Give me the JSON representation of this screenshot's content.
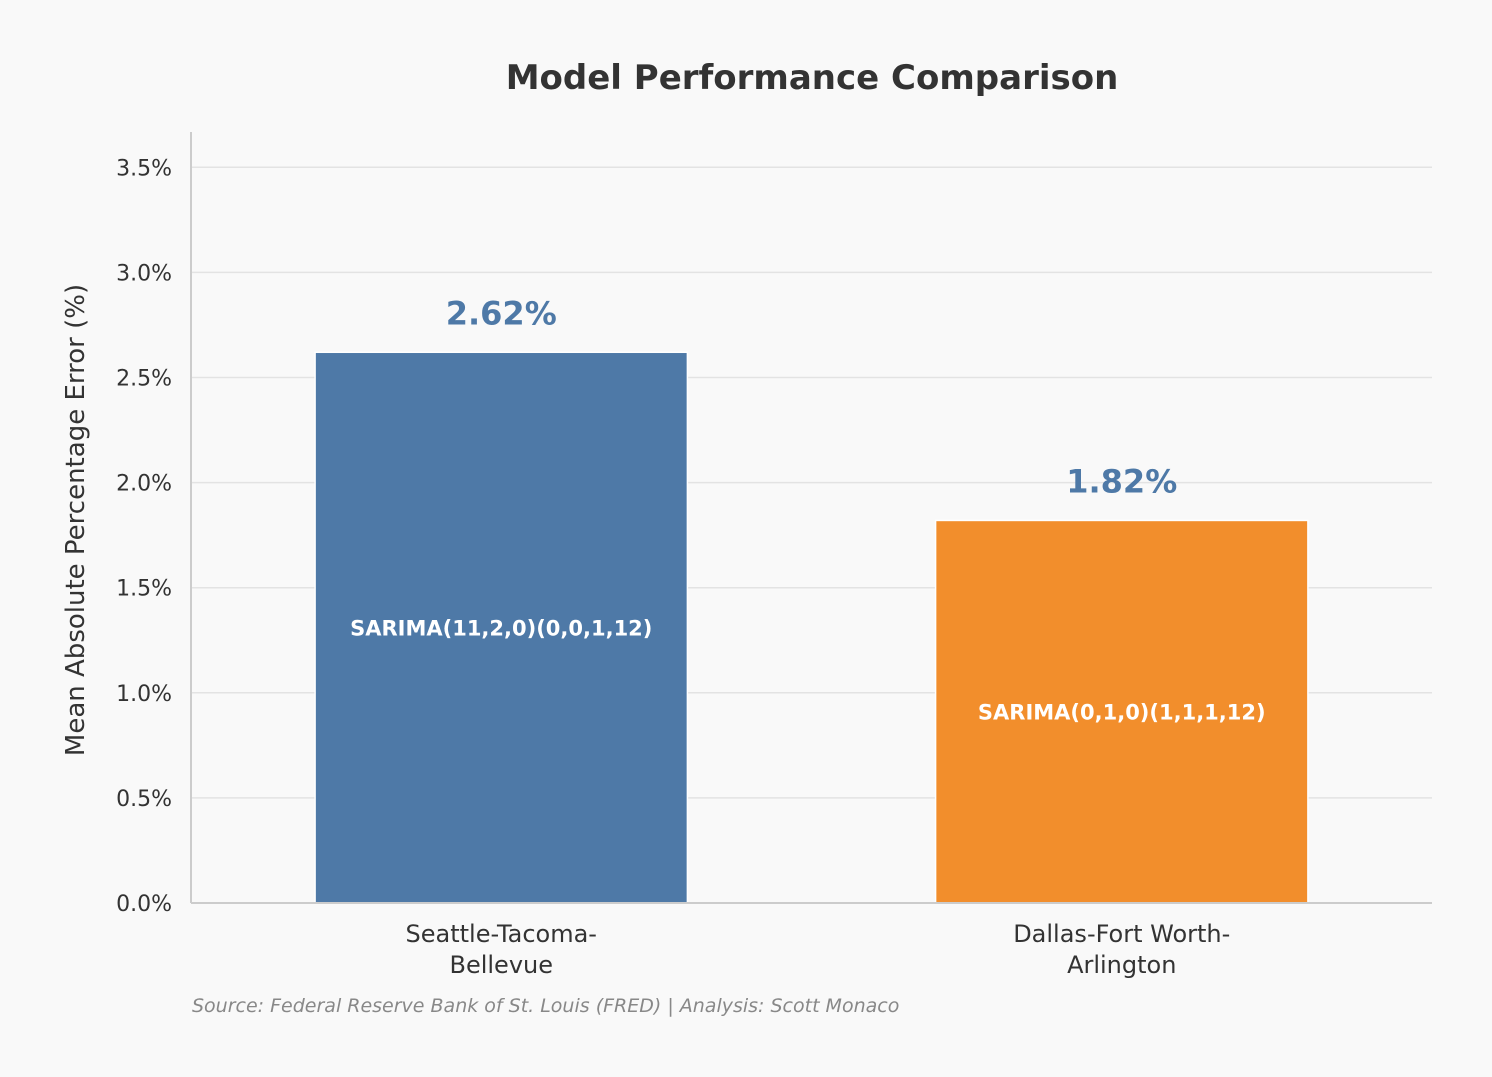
{
  "chart_data": {
    "type": "bar",
    "title": "Model Performance Comparison",
    "xlabel": "",
    "ylabel": "Mean Absolute Percentage Error (%)",
    "ylim": [
      0,
      3.5
    ],
    "yticks": [
      0,
      0.5,
      1.0,
      1.5,
      2.0,
      2.5,
      3.0,
      3.5
    ],
    "ytick_labels": [
      "0.0%",
      "0.5%",
      "1.0%",
      "1.5%",
      "2.0%",
      "2.5%",
      "3.0%",
      "3.5%"
    ],
    "grid": true,
    "categories": [
      {
        "lines": [
          "Seattle-Tacoma-",
          "Bellevue"
        ]
      },
      {
        "lines": [
          "Dallas-Fort Worth-",
          "Arlington"
        ]
      }
    ],
    "values": [
      2.62,
      1.82
    ],
    "value_labels": [
      "2.62%",
      "1.82%"
    ],
    "bar_labels": [
      "SARIMA(11,2,0)(0,0,1,12)",
      "SARIMA(0,1,0)(1,1,1,12)"
    ],
    "colors": [
      "#4e79a7",
      "#f28e2c"
    ],
    "value_label_color": "#4e79a7"
  },
  "source_note": "Source: Federal Reserve Bank of St. Louis (FRED) | Analysis: Scott Monaco"
}
